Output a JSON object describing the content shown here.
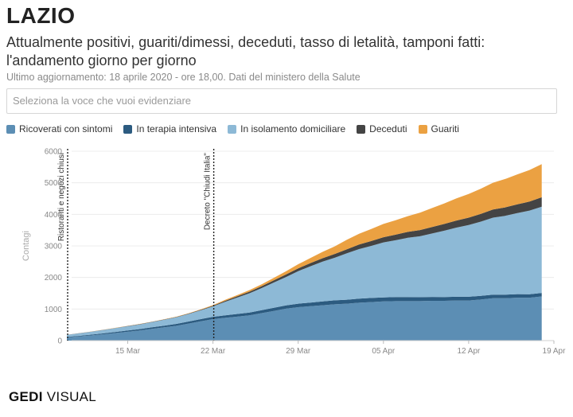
{
  "header": {
    "title": "LAZIO",
    "subtitle": "Attualmente positivi, guariti/dimessi, deceduti, tasso di letalità, tamponi fatti: l'andamento giorno per giorno",
    "updated": "Ultimo aggiornamento: 18 aprile 2020 - ore 18,00. Dati del ministero della Salute"
  },
  "selector": {
    "placeholder": "Seleziona la voce che vuoi evidenziare"
  },
  "brand": {
    "part1": "GEDI",
    "part2": " VISUAL"
  },
  "colors": {
    "ricoverati": "#5c8eb4",
    "terapia": "#2c5b80",
    "isolamento": "#8db9d6",
    "deceduti": "#444444",
    "guariti": "#eba142"
  },
  "chart_data": {
    "type": "area",
    "stacked": true,
    "title": "",
    "xlabel": "",
    "ylabel": "Contagi",
    "ylim": [
      0,
      6000
    ],
    "yticks": [
      0,
      1000,
      2000,
      3000,
      4000,
      5000,
      6000
    ],
    "xlim": [
      "2020-03-10",
      "2020-04-19"
    ],
    "xticks": [
      {
        "date": "2020-03-15",
        "label": "15 Mar"
      },
      {
        "date": "2020-03-22",
        "label": "22 Mar"
      },
      {
        "date": "2020-03-29",
        "label": "29 Mar"
      },
      {
        "date": "2020-04-05",
        "label": "05 Apr"
      },
      {
        "date": "2020-04-12",
        "label": "12 Apr"
      },
      {
        "date": "2020-04-19",
        "label": "19 Apr"
      }
    ],
    "legend_position": "top",
    "x": [
      "2020-03-10",
      "2020-03-11",
      "2020-03-12",
      "2020-03-13",
      "2020-03-14",
      "2020-03-15",
      "2020-03-16",
      "2020-03-17",
      "2020-03-18",
      "2020-03-19",
      "2020-03-20",
      "2020-03-21",
      "2020-03-22",
      "2020-03-23",
      "2020-03-24",
      "2020-03-25",
      "2020-03-26",
      "2020-03-27",
      "2020-03-28",
      "2020-03-29",
      "2020-03-30",
      "2020-03-31",
      "2020-04-01",
      "2020-04-02",
      "2020-04-03",
      "2020-04-04",
      "2020-04-05",
      "2020-04-06",
      "2020-04-07",
      "2020-04-08",
      "2020-04-09",
      "2020-04-10",
      "2020-04-11",
      "2020-04-12",
      "2020-04-13",
      "2020-04-14",
      "2020-04-15",
      "2020-04-16",
      "2020-04-17",
      "2020-04-18"
    ],
    "series": [
      {
        "name": "Ricoverati con sintomi",
        "key": "ricoverati",
        "values": [
          100,
          130,
          165,
          200,
          240,
          280,
          320,
          370,
          420,
          470,
          540,
          610,
          680,
          720,
          760,
          800,
          870,
          940,
          1010,
          1060,
          1090,
          1120,
          1150,
          1170,
          1200,
          1220,
          1240,
          1250,
          1250,
          1250,
          1260,
          1260,
          1270,
          1270,
          1300,
          1340,
          1340,
          1360,
          1360,
          1400
        ]
      },
      {
        "name": "In terapia intensiva",
        "key": "terapia",
        "values": [
          20,
          22,
          25,
          30,
          35,
          40,
          45,
          50,
          55,
          60,
          65,
          70,
          75,
          80,
          85,
          90,
          95,
          100,
          105,
          110,
          115,
          120,
          125,
          125,
          130,
          130,
          130,
          130,
          128,
          126,
          124,
          122,
          120,
          120,
          118,
          116,
          114,
          112,
          110,
          110
        ]
      },
      {
        "name": "In isolamento domiciliare",
        "key": "isolamento",
        "values": [
          60,
          75,
          90,
          105,
          120,
          135,
          150,
          165,
          185,
          210,
          240,
          280,
          330,
          430,
          520,
          610,
          700,
          800,
          900,
          1030,
          1150,
          1260,
          1350,
          1470,
          1570,
          1650,
          1740,
          1800,
          1880,
          1930,
          2010,
          2100,
          2190,
          2270,
          2350,
          2440,
          2500,
          2570,
          2650,
          2730
        ]
      },
      {
        "name": "Deceduti",
        "key": "deceduti",
        "values": [
          3,
          4,
          5,
          6,
          7,
          8,
          9,
          10,
          11,
          12,
          13,
          15,
          20,
          30,
          40,
          50,
          60,
          70,
          80,
          90,
          100,
          110,
          120,
          130,
          145,
          155,
          165,
          175,
          185,
          195,
          205,
          215,
          225,
          235,
          245,
          255,
          265,
          275,
          285,
          300
        ]
      },
      {
        "name": "Guariti",
        "key": "guariti",
        "values": [
          2,
          2,
          3,
          3,
          4,
          4,
          5,
          5,
          6,
          8,
          10,
          15,
          20,
          30,
          40,
          50,
          60,
          80,
          100,
          130,
          160,
          200,
          240,
          300,
          340,
          380,
          420,
          460,
          500,
          550,
          600,
          650,
          700,
          750,
          800,
          850,
          900,
          950,
          1000,
          1050
        ]
      }
    ],
    "annotations": [
      {
        "date": "2020-03-10",
        "label": "Ristoranti e negozi chiusi"
      },
      {
        "date": "2020-03-22",
        "label": "Decreto \"Chiudi Italia\""
      }
    ]
  }
}
